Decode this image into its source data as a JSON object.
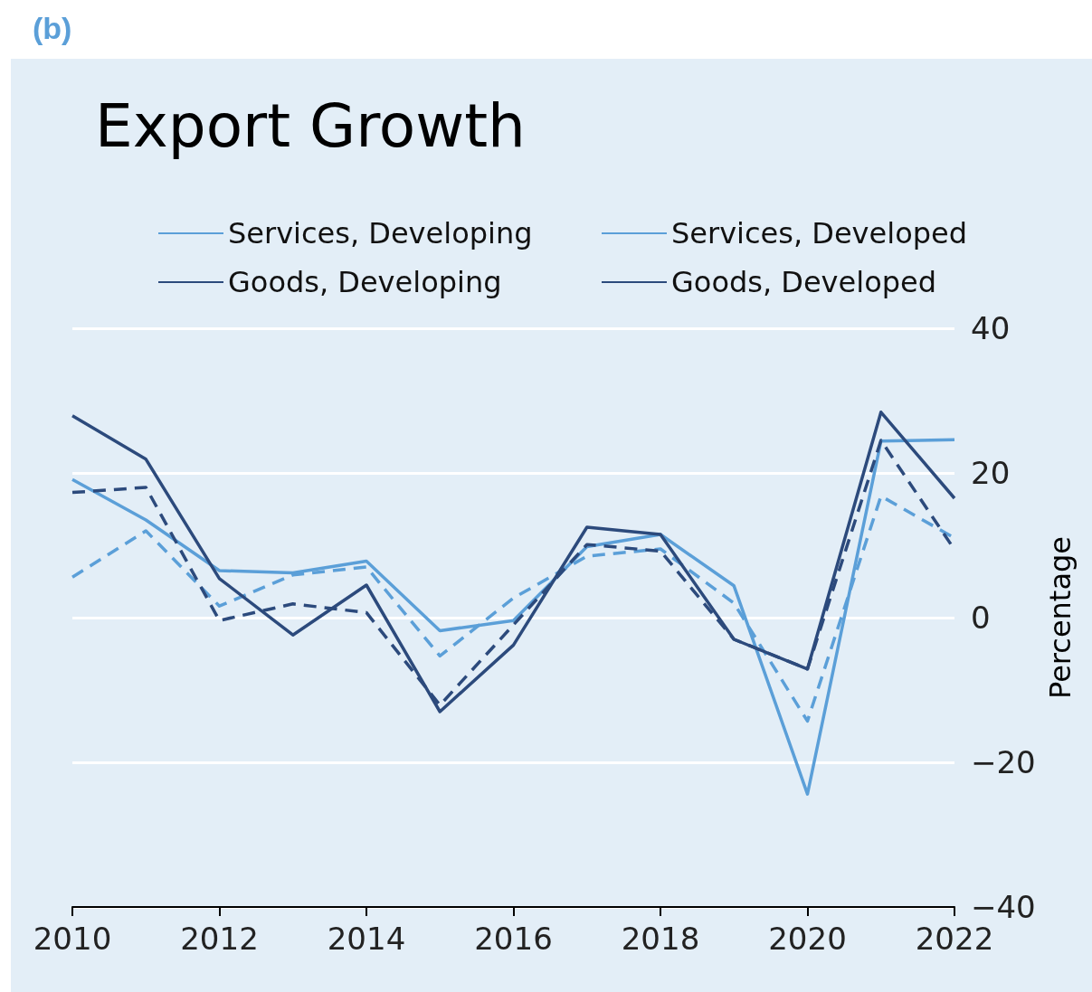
{
  "chart_data": {
    "type": "line",
    "title": "Export Growth",
    "ylabel": "Percentage",
    "annotations": [
      "(b)"
    ],
    "x": [
      2010,
      2011,
      2012,
      2013,
      2014,
      2015,
      2016,
      2017,
      2018,
      2019,
      2020,
      2021,
      2022
    ],
    "xlim": [
      2010,
      2022
    ],
    "xticks": [
      2010,
      2012,
      2014,
      2016,
      2018,
      2020,
      2022
    ],
    "ylim": [
      -40,
      40
    ],
    "yticks": [
      -40,
      -20,
      0,
      20,
      40
    ],
    "grid": "y",
    "legend": "top",
    "marker": "none",
    "series": [
      {
        "name": "Services, Developing",
        "color": "#5b9fd8",
        "line_style": "solid",
        "values": [
          19.1,
          13.5,
          6.5,
          6.2,
          7.8,
          -1.8,
          -0.4,
          9.8,
          11.5,
          4.4,
          -24.4,
          24.4,
          24.6
        ]
      },
      {
        "name": "Services, Developed",
        "color": "#5b9fd8",
        "line_style": "dashed",
        "values": [
          5.6,
          12,
          1.6,
          5.9,
          7,
          -5.3,
          2.7,
          8.5,
          9.5,
          2,
          -14.3,
          16.8,
          11
        ]
      },
      {
        "name": "Goods, Developing",
        "color": "#2c4a7c",
        "line_style": "solid",
        "values": [
          27.9,
          21.9,
          5.4,
          -2.4,
          4.5,
          -13,
          -3.8,
          12.5,
          11.5,
          -3,
          -7.1,
          28.4,
          16.5
        ]
      },
      {
        "name": "Goods, Developed",
        "color": "#2c4a7c",
        "line_style": "dashed",
        "values": [
          17.3,
          18,
          -0.4,
          1.9,
          0.7,
          -12.1,
          -1,
          10.1,
          9.2,
          -3,
          -7.1,
          24.5,
          9.4
        ]
      }
    ]
  }
}
